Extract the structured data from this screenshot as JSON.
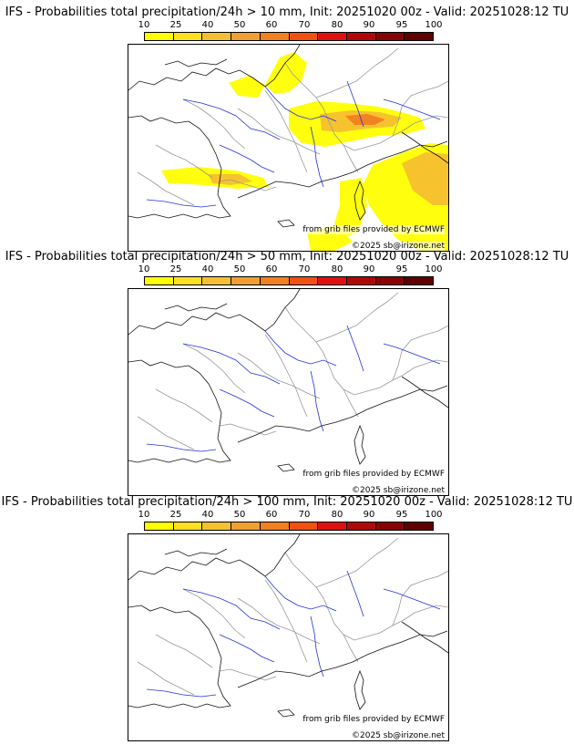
{
  "panels": [
    {
      "title": "IFS - Probabilities total precipitation/24h > 10 mm, Init: 20251020 00z - Valid: 20251028:12 TU",
      "has_precip": true
    },
    {
      "title": "IFS - Probabilities total precipitation/24h > 50 mm, Init: 20251020 00z - Valid: 20251028:12 TU",
      "has_precip": false
    },
    {
      "title": "IFS - Probabilities total precipitation/24h > 100 mm, Init: 20251020 00z - Valid: 20251028:12 TU",
      "has_precip": false
    }
  ],
  "scale": {
    "ticks": [
      "10",
      "25",
      "40",
      "50",
      "60",
      "70",
      "80",
      "90",
      "95",
      "100"
    ],
    "colors": [
      "#ffff00",
      "#ffe020",
      "#f5c030",
      "#f0a030",
      "#f08020",
      "#f05010",
      "#e01010",
      "#b00808",
      "#880404",
      "#600000"
    ]
  },
  "credits": {
    "source": "from grib files provided by ECMWF",
    "copyright": "©2025 sb@irizone.net"
  },
  "map_colors": {
    "coast": "#111111",
    "borders": "#999999",
    "rivers": "#2233dd",
    "precip_light": "#ffff00",
    "precip_mid": "#f5c030",
    "precip_high": "#f08020"
  }
}
